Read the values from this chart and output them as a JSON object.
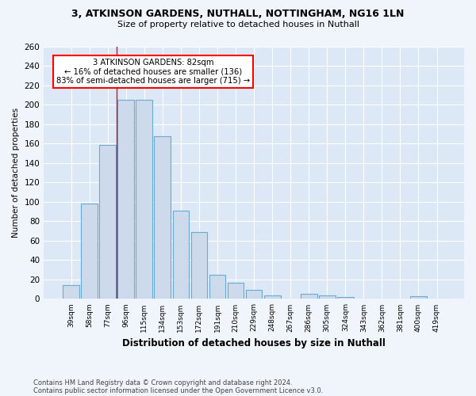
{
  "title1": "3, ATKINSON GARDENS, NUTHALL, NOTTINGHAM, NG16 1LN",
  "title2": "Size of property relative to detached houses in Nuthall",
  "xlabel": "Distribution of detached houses by size in Nuthall",
  "ylabel": "Number of detached properties",
  "categories": [
    "39sqm",
    "58sqm",
    "77sqm",
    "96sqm",
    "115sqm",
    "134sqm",
    "153sqm",
    "172sqm",
    "191sqm",
    "210sqm",
    "229sqm",
    "248sqm",
    "267sqm",
    "286sqm",
    "305sqm",
    "324sqm",
    "343sqm",
    "362sqm",
    "381sqm",
    "400sqm",
    "419sqm"
  ],
  "values": [
    14,
    98,
    159,
    205,
    205,
    168,
    91,
    69,
    25,
    17,
    9,
    4,
    0,
    5,
    4,
    2,
    0,
    0,
    0,
    3,
    0
  ],
  "bar_color": "#ccdaeb",
  "bar_edge_color": "#6aaad4",
  "background_color": "#dce8f5",
  "red_line_index": 2.5,
  "annotation_text": "3 ATKINSON GARDENS: 82sqm\n← 16% of detached houses are smaller (136)\n83% of semi-detached houses are larger (715) →",
  "footer1": "Contains HM Land Registry data © Crown copyright and database right 2024.",
  "footer2": "Contains public sector information licensed under the Open Government Licence v3.0.",
  "ylim": [
    0,
    260
  ],
  "yticks": [
    0,
    20,
    40,
    60,
    80,
    100,
    120,
    140,
    160,
    180,
    200,
    220,
    240,
    260
  ]
}
